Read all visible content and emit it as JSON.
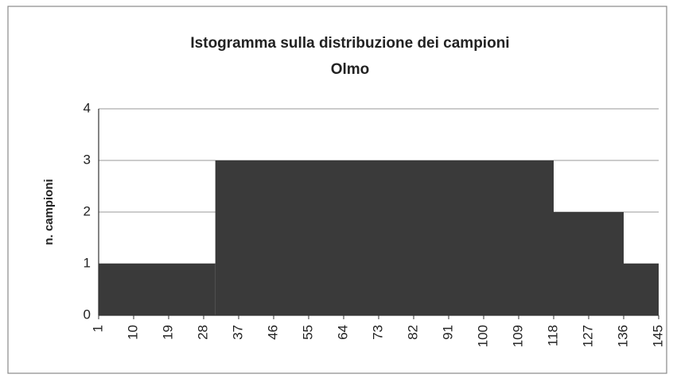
{
  "chart_data": {
    "type": "histogram",
    "title": "Istogramma sulla distribuzione dei campioni",
    "subtitle": "Olmo",
    "y_label": "n. campioni",
    "bins": [
      1,
      31,
      118,
      136,
      145
    ],
    "counts": [
      1,
      3,
      2,
      1
    ],
    "color": "#3a3a3a",
    "xlim": [
      1,
      145
    ],
    "xticks": [
      1,
      10,
      19,
      28,
      37,
      46,
      55,
      64,
      73,
      82,
      91,
      100,
      109,
      118,
      127,
      136,
      145
    ],
    "ylim": [
      0,
      4
    ],
    "yticks": [
      0,
      1,
      2,
      3,
      4
    ],
    "grid": true
  }
}
